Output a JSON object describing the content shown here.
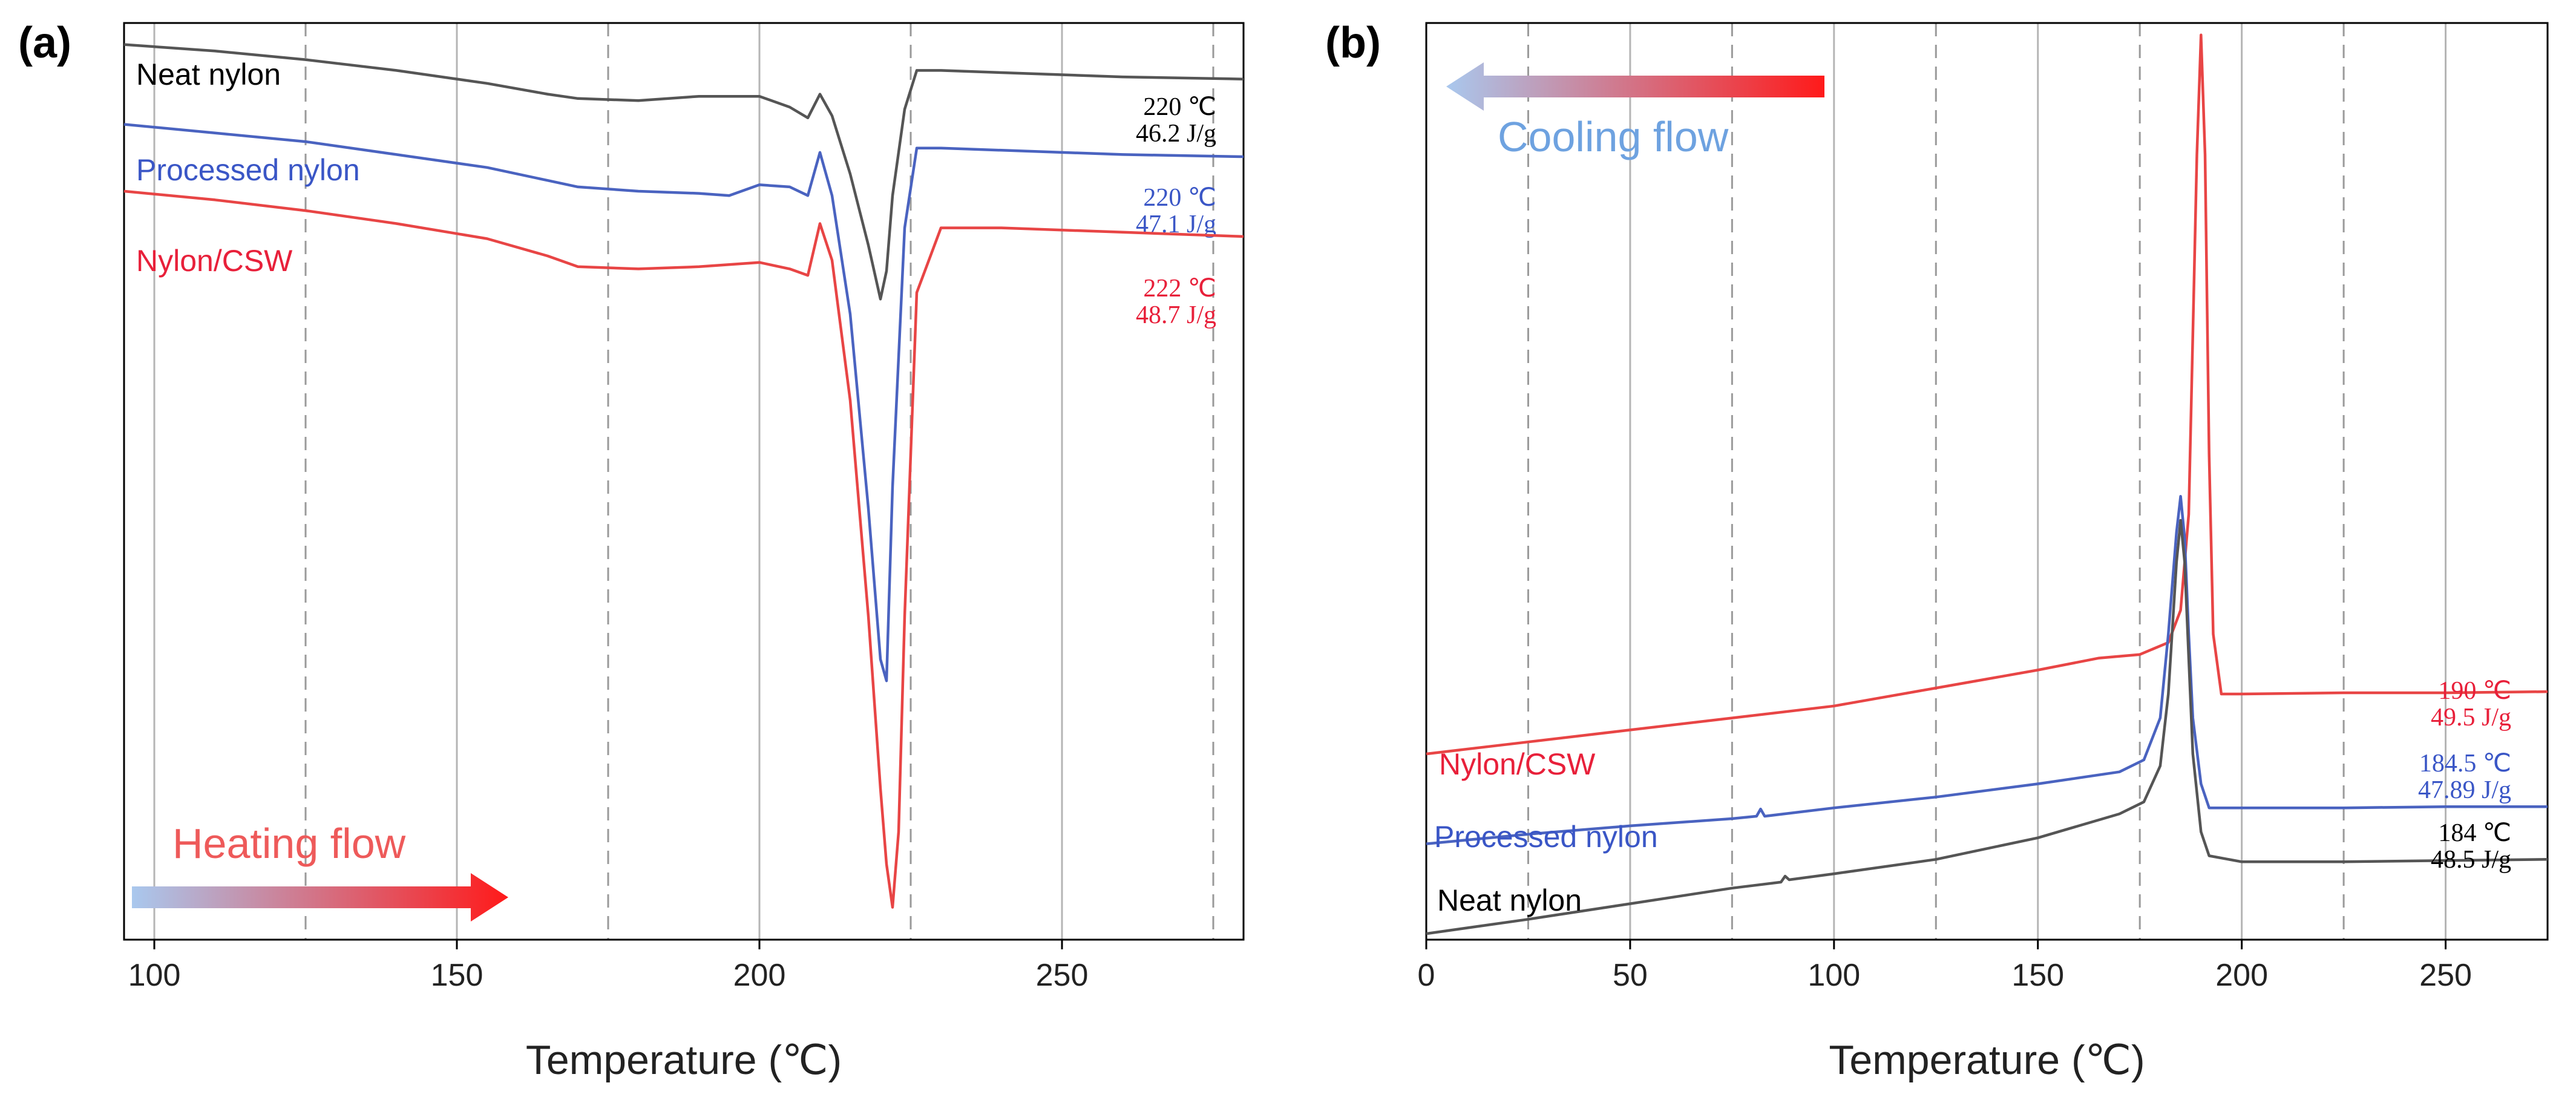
{
  "chart_data": [
    {
      "panel": "(a)",
      "type": "line",
      "xlabel": "Temperature (℃)",
      "ylabel": "",
      "xlim": [
        95,
        280
      ],
      "xticks": [
        100,
        150,
        200,
        250
      ],
      "solid_gridlines": [
        100,
        150,
        200,
        250
      ],
      "dashed_gridlines": [
        125,
        175,
        225,
        275
      ],
      "y_tick_labels": false,
      "arrow": {
        "label": "Heating flow",
        "direction": "right"
      },
      "series": [
        {
          "name": "Neat nylon",
          "color": "#555555",
          "label_color": "#000000",
          "annotation": [
            "220 ℃",
            "46.2 J/g"
          ],
          "x": [
            95,
            110,
            125,
            140,
            155,
            165,
            170,
            180,
            190,
            195,
            200,
            205,
            208,
            210,
            212,
            215,
            218,
            220,
            221,
            222,
            224,
            226,
            230,
            240,
            260,
            280
          ],
          "y": [
            1.5,
            1.2,
            0.8,
            0.3,
            -0.3,
            -0.8,
            -1.0,
            -1.1,
            -0.9,
            -0.9,
            -0.9,
            -1.4,
            -1.9,
            -0.8,
            -1.8,
            -4.5,
            -7.8,
            -10.3,
            -9.0,
            -5.5,
            -1.5,
            0.3,
            0.3,
            0.2,
            0.0,
            -0.1
          ]
        },
        {
          "name": "Processed nylon",
          "color": "#4a63c0",
          "label_color": "#3a56c6",
          "annotation": [
            "220 ℃",
            "47.1 J/g"
          ],
          "x": [
            95,
            110,
            125,
            140,
            155,
            165,
            170,
            180,
            190,
            195,
            200,
            205,
            208,
            210,
            212,
            215,
            218,
            220,
            221,
            222,
            224,
            226,
            230,
            240,
            260,
            280
          ],
          "y": [
            -2.2,
            -2.6,
            -3.0,
            -3.6,
            -4.2,
            -4.8,
            -5.1,
            -5.3,
            -5.4,
            -5.5,
            -5.0,
            -5.1,
            -5.5,
            -3.5,
            -5.5,
            -11.0,
            -20.0,
            -27.0,
            -28.0,
            -19.0,
            -7.0,
            -3.3,
            -3.3,
            -3.4,
            -3.6,
            -3.7
          ]
        },
        {
          "name": "Nylon/CSW",
          "color": "#e84545",
          "label_color": "#e8203a",
          "annotation": [
            "222 ℃",
            "48.7 J/g"
          ],
          "x": [
            95,
            110,
            125,
            140,
            155,
            165,
            170,
            180,
            190,
            195,
            200,
            205,
            208,
            210,
            212,
            215,
            218,
            220,
            221,
            222,
            223,
            224,
            226,
            230,
            240,
            260,
            280
          ],
          "y": [
            -5.3,
            -5.7,
            -6.2,
            -6.8,
            -7.5,
            -8.3,
            -8.8,
            -8.9,
            -8.8,
            -8.7,
            -8.6,
            -8.9,
            -9.2,
            -6.8,
            -8.5,
            -15.0,
            -25.0,
            -33.0,
            -36.5,
            -38.5,
            -35.0,
            -25.0,
            -10.0,
            -7.0,
            -7.0,
            -7.2,
            -7.4
          ]
        }
      ]
    },
    {
      "panel": "(b)",
      "type": "line",
      "xlabel": "Temperature (℃)",
      "ylabel": "",
      "xlim": [
        0,
        275
      ],
      "xticks": [
        0,
        50,
        100,
        150,
        200,
        250
      ],
      "solid_gridlines": [
        0,
        50,
        100,
        150,
        200,
        250
      ],
      "dashed_gridlines": [
        25,
        75,
        125,
        175,
        225
      ],
      "y_tick_labels": false,
      "arrow": {
        "label": "Cooling flow",
        "direction": "left"
      },
      "series": [
        {
          "name": "Nylon/CSW",
          "color": "#e84545",
          "label_color": "#e8203a",
          "annotation": [
            "190 ℃",
            "49.5 J/g"
          ],
          "x": [
            0,
            25,
            50,
            75,
            100,
            125,
            150,
            165,
            175,
            182,
            185,
            187,
            188,
            189,
            190,
            191,
            192,
            193,
            195,
            200,
            225,
            250,
            275
          ],
          "y": [
            -5.0,
            -4.0,
            -3.0,
            -2.0,
            -1.0,
            0.5,
            2.0,
            3.0,
            3.3,
            4.3,
            7.0,
            15.0,
            30.0,
            45.0,
            55.0,
            45.0,
            20.0,
            5.0,
            0.0,
            0.0,
            0.1,
            0.1,
            0.2
          ]
        },
        {
          "name": "Processed nylon",
          "color": "#4a63c0",
          "label_color": "#3a56c6",
          "annotation": [
            "184.5 ℃",
            "47.89 J/g"
          ],
          "x": [
            0,
            25,
            50,
            75,
            81,
            82,
            83,
            100,
            125,
            150,
            170,
            176,
            180,
            182,
            184,
            185,
            186,
            187,
            188,
            190,
            192,
            200,
            225,
            250,
            275
          ],
          "y": [
            -12.5,
            -11.7,
            -11.0,
            -10.4,
            -10.2,
            -9.6,
            -10.2,
            -9.5,
            -8.6,
            -7.5,
            -6.5,
            -5.5,
            -2.0,
            5.0,
            13.5,
            16.5,
            13.0,
            5.0,
            -2.0,
            -7.5,
            -9.5,
            -9.5,
            -9.5,
            -9.4,
            -9.4
          ]
        },
        {
          "name": "Neat nylon",
          "color": "#555555",
          "label_color": "#000000",
          "annotation": [
            "184 ℃",
            "48.5 J/g"
          ],
          "x": [
            0,
            25,
            50,
            75,
            87,
            88,
            89,
            100,
            125,
            150,
            170,
            176,
            180,
            182,
            184,
            185,
            186,
            187,
            188,
            190,
            192,
            200,
            225,
            250,
            275
          ],
          "y": [
            -20.0,
            -18.8,
            -17.5,
            -16.2,
            -15.7,
            -15.2,
            -15.5,
            -15.0,
            -13.8,
            -12.0,
            -10.0,
            -9.0,
            -6.0,
            0.0,
            11.0,
            14.5,
            11.0,
            3.0,
            -5.0,
            -11.5,
            -13.5,
            -14.0,
            -14.0,
            -13.9,
            -13.8
          ]
        }
      ]
    }
  ]
}
